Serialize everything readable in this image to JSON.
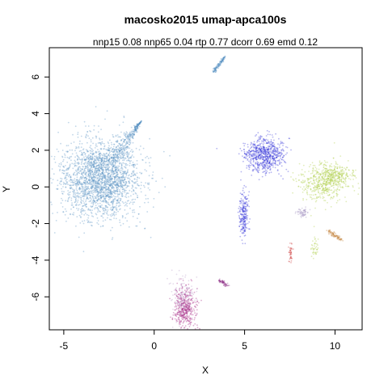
{
  "chart_data": {
    "type": "scatter",
    "title": "macosko2015 umap-apca100s",
    "subtitle": "nnp15 0.08 nnp65 0.04 rtp 0.77 dcorr 0.69 emd 0.12",
    "xlabel": "X",
    "ylabel": "Y",
    "xlim": [
      -5.8,
      11.5
    ],
    "ylim": [
      -7.8,
      7.6
    ],
    "x_ticks": [
      -5,
      0,
      5,
      10
    ],
    "y_ticks": [
      -6,
      -4,
      -2,
      0,
      2,
      4,
      6
    ],
    "grid": false,
    "legend": "none",
    "clusters": [
      {
        "color": "#4F8DC0",
        "center": [
          -3.0,
          0.4
        ],
        "spread": [
          1.1,
          1.1
        ],
        "count": 2600,
        "shape": "teardrop",
        "tip": [
          -0.7,
          3.6
        ]
      },
      {
        "color": "#4F8DC0",
        "center": [
          3.3,
          6.3
        ],
        "spread": [
          0.35,
          0.25
        ],
        "count": 120,
        "shape": "streak",
        "end": [
          3.9,
          7.1
        ]
      },
      {
        "color": "#2B2BD6",
        "center": [
          6.1,
          1.75
        ],
        "spread": [
          0.55,
          0.45
        ],
        "count": 700
      },
      {
        "color": "#2B2BD6",
        "center": [
          4.95,
          -1.5
        ],
        "spread": [
          0.12,
          0.6
        ],
        "count": 220
      },
      {
        "color": "#A8CC3C",
        "center": [
          9.4,
          0.3
        ],
        "spread": [
          0.65,
          0.55
        ],
        "count": 520
      },
      {
        "color": "#A8CC3C",
        "center": [
          10.1,
          0.6
        ],
        "spread": [
          0.45,
          0.25
        ],
        "count": 160
      },
      {
        "color": "#C07A30",
        "center": [
          9.6,
          -2.4
        ],
        "spread": [
          0.55,
          0.18
        ],
        "count": 80,
        "shape": "streak",
        "end": [
          10.4,
          -2.9
        ]
      },
      {
        "color": "#A8CC3C",
        "center": [
          8.9,
          -3.3
        ],
        "spread": [
          0.1,
          0.3
        ],
        "count": 40
      },
      {
        "color": "#CC3333",
        "center": [
          7.55,
          -3.6
        ],
        "spread": [
          0.06,
          0.3
        ],
        "count": 40
      },
      {
        "color": "#8B2C84",
        "center": [
          3.6,
          -5.1
        ],
        "spread": [
          0.45,
          0.12
        ],
        "count": 60,
        "shape": "streak",
        "end": [
          4.1,
          -5.4
        ]
      },
      {
        "color": "#A0187A",
        "center": [
          1.7,
          -6.6
        ],
        "spread": [
          0.3,
          0.55
        ],
        "count": 420
      },
      {
        "color": "#B89CC8",
        "center": [
          1.6,
          -6.1
        ],
        "spread": [
          0.3,
          0.55
        ],
        "count": 140
      },
      {
        "color": "#A090C0",
        "center": [
          8.2,
          -1.4
        ],
        "spread": [
          0.15,
          0.12
        ],
        "count": 60
      }
    ]
  }
}
